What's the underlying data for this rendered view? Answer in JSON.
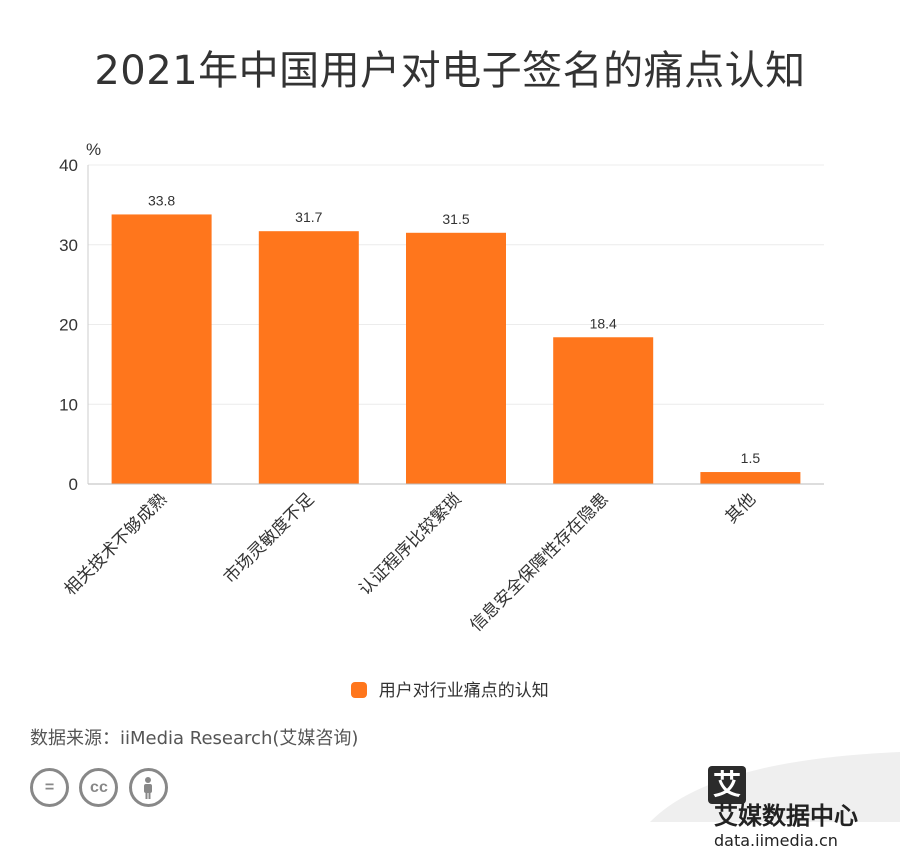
{
  "title": "2021年中国用户对电子签名的痛点认知",
  "chart_data": {
    "type": "bar",
    "categories": [
      "相关技术不够成熟",
      "市场灵敏度不足",
      "认证程序比较繁琐",
      "信息安全保障性存在隐患",
      "其他"
    ],
    "series": [
      {
        "name": "用户对行业痛点的认知",
        "values": [
          33.8,
          31.7,
          31.5,
          18.4,
          1.5
        ]
      }
    ],
    "data_labels": [
      "33.8",
      "31.7",
      "31.5",
      "18.4",
      "1.5"
    ],
    "ylabel": "%",
    "ylim": [
      0,
      40
    ],
    "yticks": [
      0,
      10,
      20,
      30,
      40
    ],
    "grid": true,
    "legend_position": "bottom",
    "bar_color": "#FF761C"
  },
  "legend": {
    "label": "用户对行业痛点的认知"
  },
  "source": "数据来源：iiMedia Research(艾媒咨询)",
  "license_icons": [
    "=",
    "cc",
    "person-icon"
  ],
  "brand": {
    "logo_char": "艾",
    "name": "艾媒数据中心",
    "url": "data.iimedia.cn"
  }
}
